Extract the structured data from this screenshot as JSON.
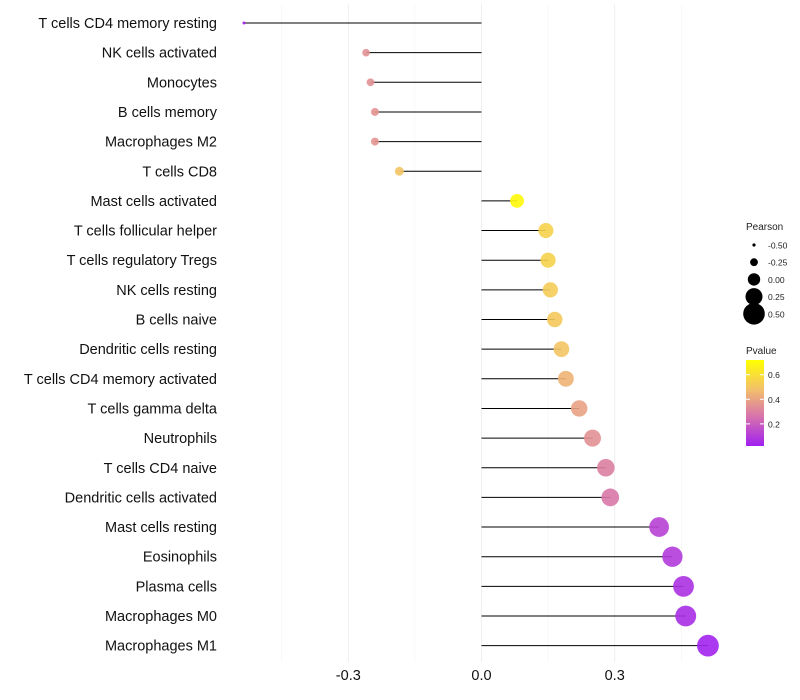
{
  "chart_data": {
    "type": "lollipop",
    "title": "",
    "xlabel": "",
    "ylabel": "",
    "xlim": [
      -0.55,
      0.56
    ],
    "grid": true,
    "x_ticks": [
      -0.3,
      0.0,
      0.3
    ],
    "x_tick_labels": [
      "-0.3",
      "0.0",
      "0.3"
    ],
    "categories": [
      "T cells CD4 memory resting",
      "NK cells activated",
      "Monocytes",
      "B cells memory",
      "Macrophages M2",
      "T cells CD8",
      "Mast cells activated",
      "T cells follicular helper",
      "T cells regulatory  Tregs ",
      "NK cells resting",
      "B cells naive",
      "Dendritic cells resting",
      "T cells CD4 memory activated",
      "T cells gamma delta",
      "Neutrophils",
      "T cells CD4 naive",
      "Dendritic cells activated",
      "Mast cells resting",
      "Eosinophils",
      "Plasma cells",
      "Macrophages M0",
      "Macrophages M1"
    ],
    "series": [
      {
        "name": "Pearson",
        "values": [
          -0.535,
          -0.26,
          -0.25,
          -0.24,
          -0.24,
          -0.185,
          0.08,
          0.145,
          0.15,
          0.155,
          0.165,
          0.18,
          0.19,
          0.22,
          0.25,
          0.28,
          0.29,
          0.4,
          0.43,
          0.455,
          0.46,
          0.51
        ]
      },
      {
        "name": "Pvalue",
        "values": [
          0.02,
          0.35,
          0.35,
          0.36,
          0.36,
          0.5,
          0.7,
          0.55,
          0.55,
          0.53,
          0.52,
          0.5,
          0.45,
          0.4,
          0.35,
          0.3,
          0.28,
          0.12,
          0.1,
          0.07,
          0.06,
          0.03
        ]
      }
    ],
    "legends": {
      "size": {
        "title": "Pearson",
        "breaks": [
          -0.5,
          -0.25,
          0.0,
          0.25,
          0.5
        ],
        "labels": [
          "-0.50",
          "-0.25",
          "0.00",
          "0.25",
          "0.50"
        ]
      },
      "color": {
        "title": "Pvalue",
        "range": [
          0.02,
          0.72
        ],
        "breaks": [
          0.2,
          0.4,
          0.6
        ],
        "labels": [
          "0.2",
          "0.4",
          "0.6"
        ],
        "gradient": [
          "#a020f0",
          "#d66fb0",
          "#f2c06a",
          "#ffff00"
        ]
      }
    }
  }
}
